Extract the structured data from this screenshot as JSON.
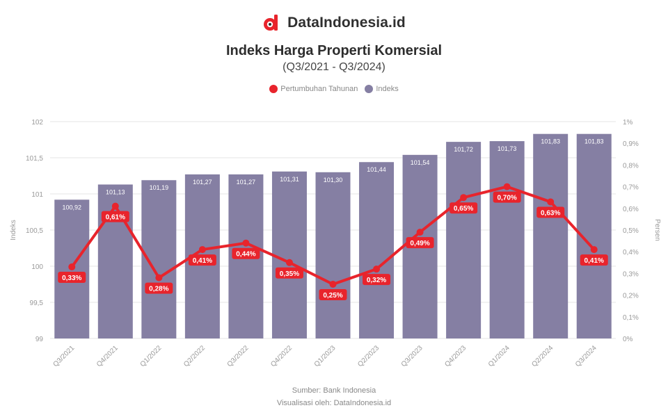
{
  "brand": {
    "name": "DataIndonesia.id",
    "accent": "#e8242c"
  },
  "chart_data": {
    "type": "bar",
    "title": "Indeks Harga Properti Komersial",
    "subtitle": "(Q3/2021 - Q3/2024)",
    "categories": [
      "Q3/2021",
      "Q4/2021",
      "Q1/2022",
      "Q2/2022",
      "Q3/2022",
      "Q4/2022",
      "Q1/2023",
      "Q2/2023",
      "Q3/2023",
      "Q4/2023",
      "Q1/2024",
      "Q2/2024",
      "Q3/2024"
    ],
    "series": [
      {
        "name": "Pertumbuhan Tahunan",
        "type": "line",
        "axis": "right",
        "color": "#e8242c",
        "values": [
          0.33,
          0.61,
          0.28,
          0.41,
          0.44,
          0.35,
          0.25,
          0.32,
          0.49,
          0.65,
          0.7,
          0.63,
          0.41
        ],
        "labels": [
          "0,33%",
          "0,61%",
          "0,28%",
          "0,41%",
          "0,44%",
          "0,35%",
          "0,25%",
          "0,32%",
          "0,49%",
          "0,65%",
          "0,70%",
          "0,63%",
          "0,41%"
        ]
      },
      {
        "name": "Indeks",
        "type": "bar",
        "axis": "left",
        "color": "#857fa3",
        "values": [
          100.92,
          101.13,
          101.19,
          101.27,
          101.27,
          101.31,
          101.3,
          101.44,
          101.54,
          101.72,
          101.73,
          101.83,
          101.83
        ],
        "labels": [
          "100,92",
          "101,13",
          "101,19",
          "101,27",
          "101,27",
          "101,31",
          "101,30",
          "101,44",
          "101,54",
          "101,72",
          "101,73",
          "101,83",
          "101,83"
        ]
      }
    ],
    "yleft": {
      "label": "Indeks",
      "ylim": [
        99,
        102
      ],
      "ticks": [
        99,
        99.5,
        100,
        100.5,
        101,
        101.5,
        102
      ],
      "tick_labels": [
        "99",
        "99,5",
        "100",
        "100,5",
        "101",
        "101,5",
        "102"
      ]
    },
    "yright": {
      "label": "Persen",
      "ylim": [
        0,
        1
      ],
      "ticks": [
        0,
        0.1,
        0.2,
        0.3,
        0.4,
        0.5,
        0.6,
        0.7,
        0.8,
        0.9,
        1.0
      ],
      "tick_labels": [
        "0%",
        "0,1%",
        "0,2%",
        "0,3%",
        "0,4%",
        "0,5%",
        "0,6%",
        "0,7%",
        "0,8%",
        "0,9%",
        "1%"
      ]
    },
    "grid": true,
    "legend_position": "top-center"
  },
  "source": {
    "line1": "Sumber: Bank Indonesia",
    "line2": "Visualisasi oleh: DataIndonesia.id"
  }
}
